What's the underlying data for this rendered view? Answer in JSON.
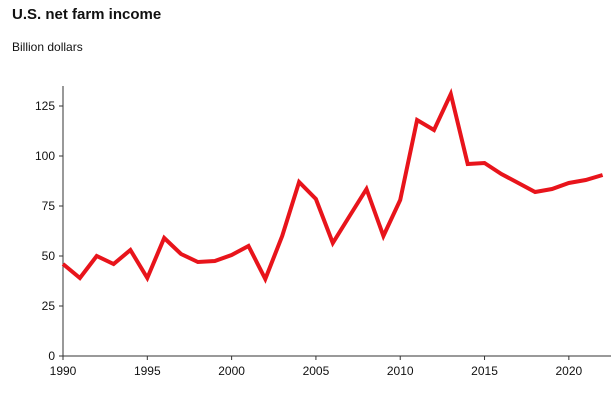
{
  "chart_data": {
    "type": "line",
    "title": "U.S. net farm income",
    "subtitle": "Billion dollars",
    "xlabel": "",
    "ylabel": "",
    "xlim": [
      1990,
      2022.5
    ],
    "ylim": [
      0,
      135
    ],
    "x_ticks": [
      1990,
      1995,
      2000,
      2005,
      2010,
      2015,
      2020
    ],
    "y_ticks": [
      0,
      25,
      50,
      75,
      100,
      125
    ],
    "grid": false,
    "legend": "none",
    "line_color": "#e8141b",
    "series": [
      {
        "x": [
          1990,
          1991,
          1992,
          1993,
          1994,
          1995,
          1996,
          1997,
          1998,
          1999,
          2000,
          2001,
          2002,
          2003,
          2004,
          2005,
          2006,
          2007,
          2008,
          2009,
          2010,
          2011,
          2012,
          2013,
          2014,
          2015,
          2016,
          2017,
          2018,
          2019,
          2020,
          2021,
          2022
        ],
        "values": [
          46,
          39,
          50,
          46,
          53,
          39,
          59,
          51,
          47,
          47.5,
          50.5,
          55,
          38.5,
          60,
          87,
          78.5,
          56.5,
          70,
          83.5,
          60,
          78,
          118,
          113,
          131,
          96,
          96.5,
          91,
          86.5,
          82,
          83.5,
          86.5,
          88,
          90.5
        ]
      }
    ]
  }
}
